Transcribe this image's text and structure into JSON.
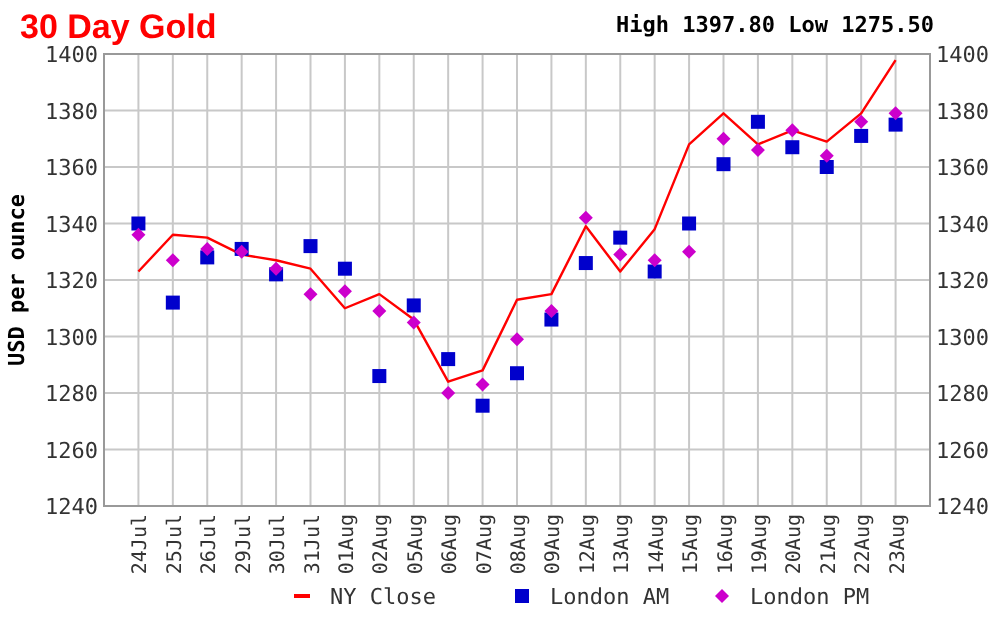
{
  "chart_data": {
    "type": "line",
    "title": "30 Day Gold",
    "subtitle": "High 1397.80 Low 1275.50",
    "ylabel": "USD per ounce",
    "categories": [
      "24Jul",
      "25Jul",
      "26Jul",
      "29Jul",
      "30Jul",
      "31Jul",
      "01Aug",
      "02Aug",
      "05Aug",
      "06Aug",
      "07Aug",
      "08Aug",
      "09Aug",
      "12Aug",
      "13Aug",
      "14Aug",
      "15Aug",
      "16Aug",
      "19Aug",
      "20Aug",
      "21Aug",
      "22Aug",
      "23Aug"
    ],
    "series": [
      {
        "name": "NY Close",
        "color": "#ff0000",
        "marker": "none",
        "values": [
          1323,
          1336,
          1335,
          1329,
          1327,
          1324,
          1310,
          1315,
          1306,
          1284,
          1288,
          1313,
          1315,
          1339,
          1323,
          1338,
          1368,
          1379,
          1368,
          1373,
          1369,
          1379,
          1397.8
        ]
      },
      {
        "name": "London AM",
        "type": "scatter",
        "color": "#0000cc",
        "marker": "square",
        "values": [
          1340,
          1312,
          1328,
          1331,
          1322,
          1332,
          1324,
          1286,
          1311,
          1292,
          1275.5,
          1287,
          1306,
          1326,
          1335,
          1323,
          1340,
          1361,
          1376,
          1367,
          1360,
          1371,
          1375
        ]
      },
      {
        "name": "London PM",
        "type": "scatter",
        "color": "#cc00cc",
        "marker": "diamond",
        "values": [
          1336,
          1327,
          1331,
          1330,
          1324,
          1315,
          1316,
          1309,
          1305,
          1280,
          1283,
          1299,
          1309,
          1342,
          1329,
          1327,
          1330,
          1370,
          1366,
          1373,
          1364,
          1376,
          1379
        ]
      }
    ],
    "ylim": [
      1240,
      1400
    ],
    "yticks": [
      1240,
      1260,
      1280,
      1300,
      1320,
      1340,
      1360,
      1380,
      1400
    ],
    "y2lim": [
      1240,
      1400
    ],
    "y2ticks": [
      1240,
      1260,
      1280,
      1300,
      1320,
      1340,
      1360,
      1380,
      1400
    ],
    "grid": true,
    "legend": "bottom"
  }
}
